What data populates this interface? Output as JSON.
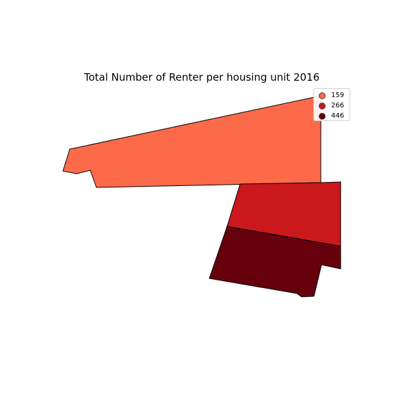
{
  "map": {
    "title": "Total Number of Renter per housing unit 2016"
  },
  "colors": {
    "low": "#fd6a4a",
    "mid": "#cb181d",
    "high": "#67000d",
    "outline": "#000000"
  },
  "legend": {
    "items": [
      {
        "label": "159",
        "color": "#fd6a4a"
      },
      {
        "label": "266",
        "color": "#cb181d"
      },
      {
        "label": "446",
        "color": "#67000d"
      }
    ]
  }
}
